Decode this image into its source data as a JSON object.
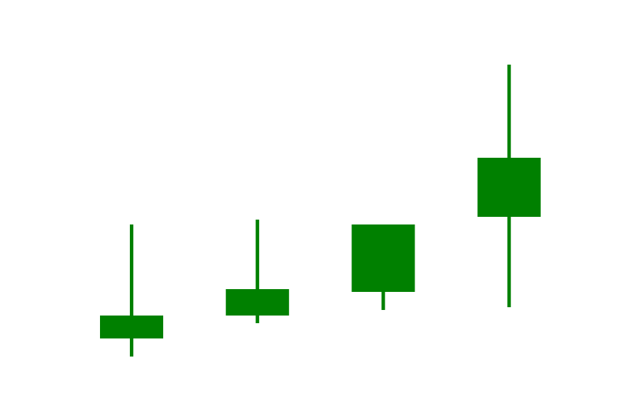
{
  "colors": {
    "background": "#ffffff",
    "bullish": "#008000"
  },
  "chart_data": {
    "type": "candlestick",
    "title": "",
    "xlabel": "",
    "ylabel": "",
    "grid": false,
    "legend": "none",
    "ylim": [
      0,
      600
    ],
    "candles": [
      {
        "index": 1,
        "open": 113,
        "close": 146,
        "high": 277,
        "low": 87
      },
      {
        "index": 2,
        "open": 146,
        "close": 184,
        "high": 284,
        "low": 135
      },
      {
        "index": 3,
        "open": 180,
        "close": 277,
        "high": 277,
        "low": 154
      },
      {
        "index": 4,
        "open": 288,
        "close": 373,
        "high": 507,
        "low": 158
      }
    ]
  }
}
